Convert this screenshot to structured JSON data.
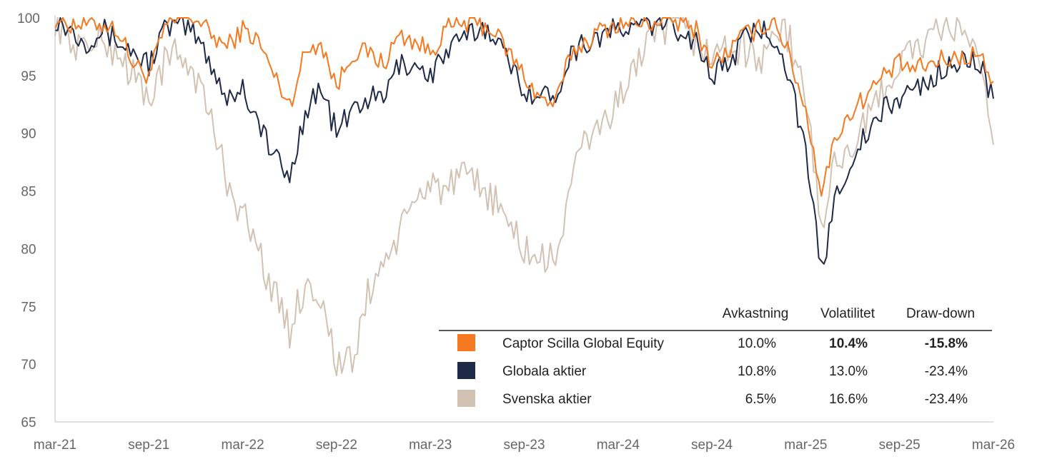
{
  "chart_data": {
    "type": "line",
    "title": "",
    "xlabel": "",
    "ylabel": "",
    "ylim": [
      65,
      100
    ],
    "y_ticks": [
      "100",
      "95",
      "90",
      "85",
      "80",
      "75",
      "70",
      "65"
    ],
    "x_ticks": [
      "mar-21",
      "sep-21",
      "mar-22",
      "sep-22",
      "mar-23",
      "sep-23",
      "mar-24",
      "sep-24",
      "mar-25",
      "sep-25",
      "mar-26"
    ],
    "grid": false,
    "series": [
      {
        "name": "Captor Scilla Global Equity",
        "color": "#f47920",
        "x": [
          "mar-21",
          "apr-21",
          "maj-21",
          "jun-21",
          "jul-21",
          "aug-21",
          "sep-21",
          "okt-21",
          "nov-21",
          "dec-21",
          "jan-22",
          "feb-22",
          "mar-22",
          "apr-22",
          "maj-22",
          "jun-22",
          "jul-22",
          "aug-22",
          "sep-22",
          "okt-22",
          "nov-22",
          "dec-22",
          "jan-23",
          "feb-23",
          "mar-23",
          "apr-23",
          "maj-23",
          "jun-23",
          "jul-23",
          "aug-23",
          "sep-23",
          "okt-23",
          "nov-23",
          "dec-23",
          "jan-24",
          "feb-24",
          "mar-24",
          "apr-24",
          "maj-24",
          "jun-24",
          "jul-24",
          "aug-24",
          "sep-24",
          "okt-24",
          "nov-24",
          "dec-24",
          "jan-25",
          "feb-25",
          "mar-25",
          "apr-25",
          "maj-25",
          "jun-25",
          "jul-25",
          "aug-25",
          "sep-25",
          "okt-25",
          "nov-25",
          "dec-25",
          "jan-26",
          "feb-26",
          "mar-26"
        ],
        "values": [
          100,
          99.5,
          99.5,
          99.5,
          99,
          96,
          95,
          99,
          100,
          100,
          98.5,
          97.5,
          99,
          98,
          95,
          92.5,
          97,
          98,
          94,
          97,
          97,
          96,
          98.5,
          98,
          97,
          99,
          99.5,
          99.5,
          99,
          97,
          95,
          93,
          92.5,
          97,
          98,
          99,
          99.5,
          99.5,
          99.5,
          100,
          99.5,
          99,
          96,
          97,
          98.5,
          99,
          100,
          96.5,
          92,
          85,
          90,
          92,
          93.5,
          95,
          96,
          95.5,
          96,
          96.5,
          96.5,
          97,
          94.5
        ]
      },
      {
        "name": "Globala aktier",
        "color": "#1f2a48",
        "x": [
          "mar-21",
          "apr-21",
          "maj-21",
          "jun-21",
          "jul-21",
          "aug-21",
          "sep-21",
          "okt-21",
          "nov-21",
          "dec-21",
          "jan-22",
          "feb-22",
          "mar-22",
          "apr-22",
          "maj-22",
          "jun-22",
          "jul-22",
          "aug-22",
          "sep-22",
          "okt-22",
          "nov-22",
          "dec-22",
          "jan-23",
          "feb-23",
          "mar-23",
          "apr-23",
          "maj-23",
          "jun-23",
          "jul-23",
          "aug-23",
          "sep-23",
          "okt-23",
          "nov-23",
          "dec-23",
          "jan-24",
          "feb-24",
          "mar-24",
          "apr-24",
          "maj-24",
          "jun-24",
          "jul-24",
          "aug-24",
          "sep-24",
          "okt-24",
          "nov-24",
          "dec-24",
          "jan-25",
          "feb-25",
          "mar-25",
          "apr-25",
          "maj-25",
          "jun-25",
          "jul-25",
          "aug-25",
          "sep-25",
          "okt-25",
          "nov-25",
          "dec-25",
          "jan-26",
          "feb-26",
          "mar-26"
        ],
        "values": [
          100,
          99,
          98,
          99,
          98,
          97,
          96,
          99,
          99.5,
          98.5,
          96,
          93,
          94,
          91,
          88,
          86,
          92,
          94,
          90,
          92,
          93,
          93,
          96,
          96,
          95,
          97,
          98,
          99,
          99,
          96,
          94,
          93,
          93.5,
          97,
          98,
          98.5,
          99,
          99,
          99.5,
          99.5,
          99,
          98,
          95,
          96,
          98,
          99,
          98.5,
          95,
          88,
          78,
          85,
          88,
          90,
          92,
          93,
          94,
          94.5,
          96,
          96,
          96.5,
          93
        ]
      },
      {
        "name": "Svenska aktier",
        "color": "#d2c2b3",
        "x": [
          "mar-21",
          "apr-21",
          "maj-21",
          "jun-21",
          "jul-21",
          "aug-21",
          "sep-21",
          "okt-21",
          "nov-21",
          "dec-21",
          "jan-22",
          "feb-22",
          "mar-22",
          "apr-22",
          "maj-22",
          "jun-22",
          "jul-22",
          "aug-22",
          "sep-22",
          "okt-22",
          "nov-22",
          "dec-22",
          "jan-23",
          "feb-23",
          "mar-23",
          "apr-23",
          "maj-23",
          "jun-23",
          "jul-23",
          "aug-23",
          "sep-23",
          "okt-23",
          "nov-23",
          "dec-23",
          "jan-24",
          "feb-24",
          "mar-24",
          "apr-24",
          "maj-24",
          "jun-24",
          "jul-24",
          "aug-24",
          "sep-24",
          "okt-24",
          "nov-24",
          "dec-24",
          "jan-25",
          "feb-25",
          "mar-25",
          "apr-25",
          "maj-25",
          "jun-25",
          "jul-25",
          "aug-25",
          "sep-25",
          "okt-25",
          "nov-25",
          "dec-25",
          "jan-26",
          "feb-26",
          "mar-26"
        ],
        "values": [
          100,
          98,
          97.5,
          98,
          97,
          95,
          93,
          96,
          97,
          95,
          91,
          86,
          83,
          80,
          76,
          73,
          77,
          76,
          70,
          70,
          76,
          79,
          81,
          84,
          86,
          85,
          86,
          85.5,
          84.5,
          82,
          80,
          79,
          79,
          86,
          89.5,
          91,
          92.5,
          96,
          97.5,
          99,
          99,
          98,
          96.5,
          97.5,
          97.5,
          96,
          99,
          98,
          93,
          82,
          88,
          89,
          91,
          94,
          96,
          97.5,
          98,
          99,
          99.5,
          96,
          89
        ]
      }
    ],
    "table": {
      "headers": [
        "Avkastning",
        "Volatilitet",
        "Draw-down"
      ],
      "rows": [
        {
          "name": "Captor Scilla Global Equity",
          "color": "#f47920",
          "values": [
            "10.0%",
            "10.4%",
            "-15.8%"
          ],
          "bold": [
            false,
            true,
            true
          ]
        },
        {
          "name": "Globala aktier",
          "color": "#1f2a48",
          "values": [
            "10.8%",
            "13.0%",
            "-23.4%"
          ],
          "bold": [
            false,
            false,
            false
          ]
        },
        {
          "name": "Svenska aktier",
          "color": "#d2c2b3",
          "values": [
            "6.5%",
            "16.6%",
            "-23.4%"
          ],
          "bold": [
            false,
            false,
            false
          ]
        }
      ]
    }
  }
}
